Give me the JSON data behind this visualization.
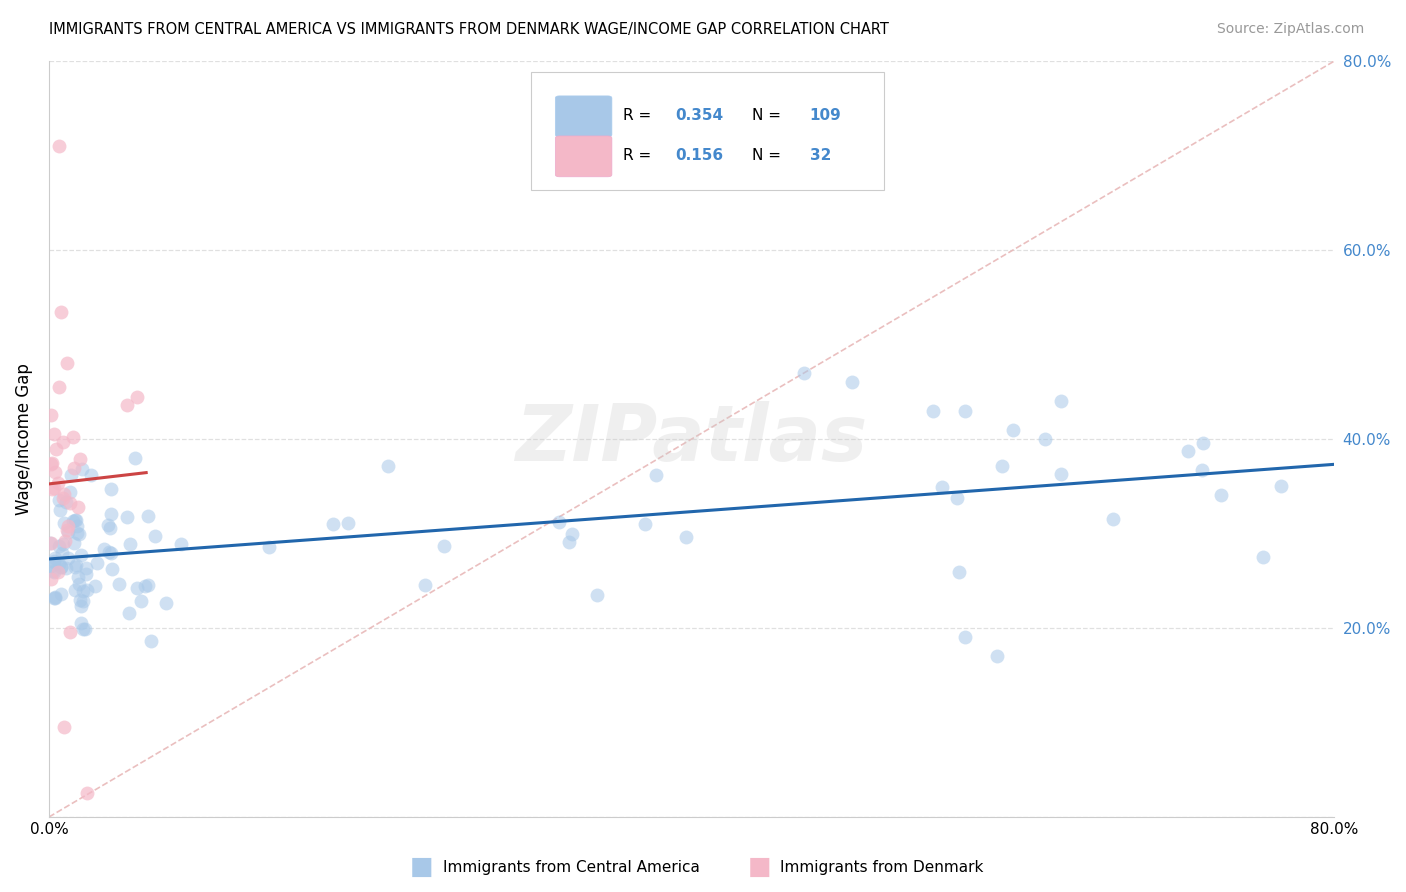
{
  "title": "IMMIGRANTS FROM CENTRAL AMERICA VS IMMIGRANTS FROM DENMARK WAGE/INCOME GAP CORRELATION CHART",
  "source": "Source: ZipAtlas.com",
  "ylabel": "Wage/Income Gap",
  "legend_label_blue": "Immigrants from Central America",
  "legend_label_pink": "Immigrants from Denmark",
  "R_blue": 0.354,
  "N_blue": 109,
  "R_pink": 0.156,
  "N_pink": 32,
  "xlim": [
    0.0,
    0.8
  ],
  "ylim": [
    0.0,
    0.8
  ],
  "right_yticks": [
    0.2,
    0.4,
    0.6,
    0.8
  ],
  "right_ytick_labels": [
    "20.0%",
    "40.0%",
    "60.0%",
    "80.0%"
  ],
  "color_blue": "#a8c8e8",
  "color_blue_fill": "#a8c8e8",
  "color_blue_line": "#2166ac",
  "color_pink": "#f4b8c8",
  "color_pink_fill": "#f4b8c8",
  "color_pink_line": "#cc4444",
  "color_diag": "#e8b8b8",
  "watermark": "ZIPatlas",
  "watermark_color": "#cccccc",
  "background_color": "#ffffff",
  "grid_color": "#e0e0e0",
  "blue_color_text": "#4488cc",
  "seed": 123
}
